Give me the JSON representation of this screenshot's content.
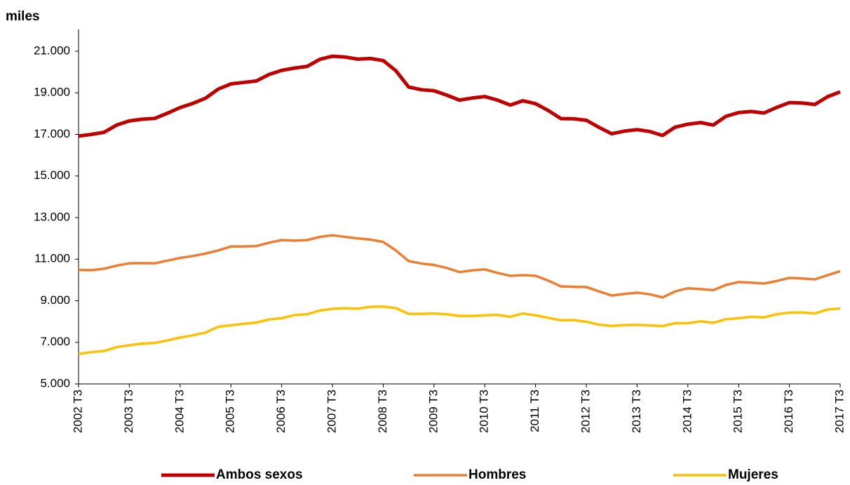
{
  "chart_data": {
    "type": "line",
    "y_label": "miles",
    "categories": [
      "2002 T3",
      null,
      null,
      null,
      "2003 T3",
      null,
      null,
      null,
      "2004 T3",
      null,
      null,
      null,
      "2005 T3",
      null,
      null,
      null,
      "2006 T3",
      null,
      null,
      null,
      "2007 T3",
      null,
      null,
      null,
      "2008 T3",
      null,
      null,
      null,
      "2009 T3",
      null,
      null,
      null,
      "2010 T3",
      null,
      null,
      null,
      "2011 T3",
      null,
      null,
      null,
      "2012 T3",
      null,
      null,
      null,
      "2013 T3",
      null,
      null,
      null,
      "2014 T3",
      null,
      null,
      null,
      "2015 T3",
      null,
      null,
      null,
      "2016 T3",
      null,
      null,
      null,
      "2017 T3"
    ],
    "series": [
      {
        "name": "Ambos sexos",
        "color": "#c00000",
        "values": [
          16920,
          17000,
          17100,
          17450,
          17650,
          17730,
          17770,
          18020,
          18290,
          18490,
          18740,
          19180,
          19430,
          19500,
          19570,
          19880,
          20080,
          20190,
          20270,
          20610,
          20760,
          20720,
          20620,
          20650,
          20550,
          20060,
          19280,
          19150,
          19100,
          18890,
          18650,
          18750,
          18820,
          18650,
          18410,
          18620,
          18480,
          18150,
          17760,
          17750,
          17680,
          17340,
          17030,
          17160,
          17230,
          17140,
          16950,
          17350,
          17490,
          17570,
          17450,
          17870,
          18050,
          18100,
          18030,
          18300,
          18530,
          18510,
          18440,
          18810,
          19050
        ]
      },
      {
        "name": "Hombres",
        "color": "#ed7d31",
        "values": [
          10480,
          10470,
          10540,
          10690,
          10800,
          10810,
          10800,
          10930,
          11060,
          11150,
          11270,
          11420,
          11610,
          11610,
          11630,
          11790,
          11920,
          11890,
          11920,
          12070,
          12150,
          12070,
          12000,
          11940,
          11830,
          11420,
          10910,
          10790,
          10720,
          10580,
          10380,
          10460,
          10510,
          10340,
          10200,
          10230,
          10200,
          9970,
          9690,
          9670,
          9660,
          9450,
          9250,
          9330,
          9390,
          9310,
          9160,
          9450,
          9600,
          9560,
          9510,
          9760,
          9900,
          9870,
          9830,
          9950,
          10100,
          10070,
          10030,
          10230,
          10420
        ]
      },
      {
        "name": "Mujeres",
        "color": "#ffc000",
        "values": [
          6440,
          6530,
          6580,
          6770,
          6860,
          6940,
          6970,
          7090,
          7230,
          7340,
          7470,
          7750,
          7820,
          7890,
          7950,
          8100,
          8160,
          8310,
          8350,
          8530,
          8610,
          8640,
          8620,
          8710,
          8720,
          8640,
          8370,
          8370,
          8390,
          8350,
          8270,
          8270,
          8300,
          8320,
          8230,
          8390,
          8300,
          8180,
          8060,
          8070,
          7990,
          7850,
          7790,
          7830,
          7840,
          7820,
          7780,
          7920,
          7920,
          8010,
          7940,
          8110,
          8160,
          8230,
          8200,
          8350,
          8430,
          8440,
          8390,
          8580,
          8630
        ]
      }
    ],
    "ylim": [
      5000,
      21000
    ],
    "yticks": [
      {
        "value": 5000,
        "label": "5.000"
      },
      {
        "value": 7000,
        "label": "7.000"
      },
      {
        "value": 9000,
        "label": "9.000"
      },
      {
        "value": 11000,
        "label": "11.000"
      },
      {
        "value": 13000,
        "label": "13.000"
      },
      {
        "value": 15000,
        "label": "15.000"
      },
      {
        "value": 17000,
        "label": "17.000"
      },
      {
        "value": 19000,
        "label": "19.000"
      },
      {
        "value": 21000,
        "label": "21.000"
      }
    ],
    "grid": false,
    "legend": "bottom"
  }
}
